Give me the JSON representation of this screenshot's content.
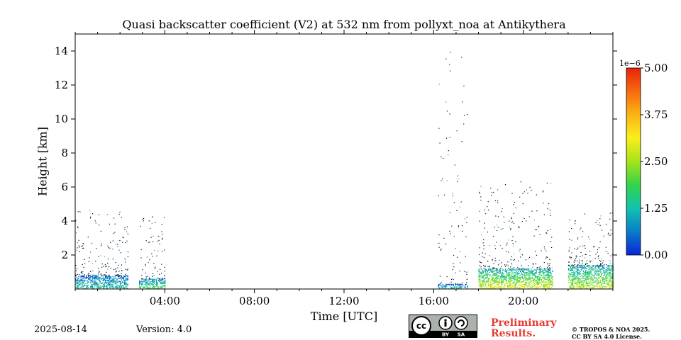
{
  "chart_data": {
    "type": "heatmap",
    "title": "Quasi backscatter coefficient (V2) at 532 nm from pollyxt_noa at Antikythera",
    "xlabel": "Time [UTC]",
    "ylabel": "Height [km]",
    "xlim_hours": [
      0,
      24
    ],
    "ylim_km": [
      0,
      15
    ],
    "x_ticks": [
      {
        "value": 4,
        "label": "04:00"
      },
      {
        "value": 8,
        "label": "08:00"
      },
      {
        "value": 12,
        "label": "12:00"
      },
      {
        "value": 16,
        "label": "16:00"
      },
      {
        "value": 20,
        "label": "20:00"
      }
    ],
    "y_ticks": [
      {
        "value": 2,
        "label": "2"
      },
      {
        "value": 4,
        "label": "4"
      },
      {
        "value": 6,
        "label": "6"
      },
      {
        "value": 8,
        "label": "8"
      },
      {
        "value": 10,
        "label": "10"
      },
      {
        "value": 12,
        "label": "12"
      },
      {
        "value": 14,
        "label": "14"
      }
    ],
    "colorbar": {
      "exponent_label": "1e−6",
      "vmin": 0,
      "vmax": 5.0,
      "ticks": [
        {
          "value": 0.0,
          "label": "0.00"
        },
        {
          "value": 1.25,
          "label": "1.25"
        },
        {
          "value": 2.5,
          "label": "2.50"
        },
        {
          "value": 3.75,
          "label": "3.75"
        },
        {
          "value": 5.0,
          "label": "5.00"
        }
      ],
      "colors": [
        "#0b24d8",
        "#0a7cc9",
        "#12c2b0",
        "#34d24a",
        "#a6e31a",
        "#fbee1c",
        "#fbb414",
        "#f76a0f",
        "#e7220c"
      ]
    },
    "measurement_periods": [
      {
        "start_h": 0.0,
        "end_h": 2.35,
        "dense_top_km": 0.8,
        "sparse_top_km": 4.7,
        "core_value": 1.2
      },
      {
        "start_h": 2.85,
        "end_h": 4.0,
        "dense_top_km": 0.6,
        "sparse_top_km": 4.3,
        "core_value": 1.6
      },
      {
        "start_h": 16.2,
        "end_h": 17.5,
        "dense_top_km": 0.3,
        "sparse_top_km": 14.6,
        "core_value": 1.0
      },
      {
        "start_h": 18.0,
        "end_h": 21.3,
        "dense_top_km": 1.2,
        "sparse_top_km": 6.4,
        "core_value": 2.6
      },
      {
        "start_h": 22.0,
        "end_h": 24.0,
        "dense_top_km": 1.4,
        "sparse_top_km": 4.5,
        "core_value": 2.4
      }
    ]
  },
  "footer": {
    "date": "2025-08-14",
    "version": "Version: 4.0",
    "preliminary_line1": "Preliminary",
    "preliminary_line2": "Results.",
    "copyright_line1": "© TROPOS & NOA 2025.",
    "copyright_line2": "CC BY SA 4.0 License.",
    "license_badge": {
      "cc": "cc",
      "by": "BY",
      "sa": "SA"
    }
  }
}
